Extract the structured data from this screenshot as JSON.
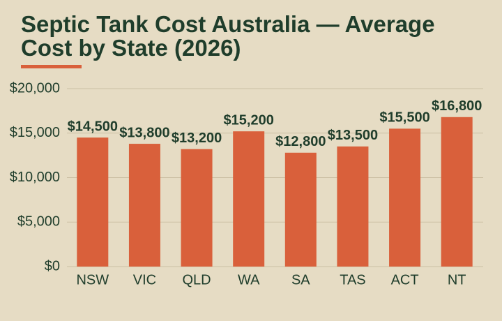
{
  "chart_data": {
    "type": "bar",
    "title": "Septic Tank Cost Australia — Average Cost by State (2026)",
    "categories": [
      "NSW",
      "VIC",
      "QLD",
      "WA",
      "SA",
      "TAS",
      "ACT",
      "NT"
    ],
    "values": [
      14500,
      13800,
      13200,
      15200,
      12800,
      13500,
      15500,
      16800
    ],
    "value_labels": [
      "$14,500",
      "$13,800",
      "$13,200",
      "$15,200",
      "$12,800",
      "$13,500",
      "$15,500",
      "$16,800"
    ],
    "color": "#d9603b",
    "ylim": [
      0,
      20000
    ],
    "yticks": [
      {
        "value": 0,
        "label": "$0"
      },
      {
        "value": 5000,
        "label": "$5,000"
      },
      {
        "value": 10000,
        "label": "$10,000"
      },
      {
        "value": 15000,
        "label": "$15,000"
      },
      {
        "value": 20000,
        "label": "$20,000"
      }
    ],
    "grid": true
  }
}
